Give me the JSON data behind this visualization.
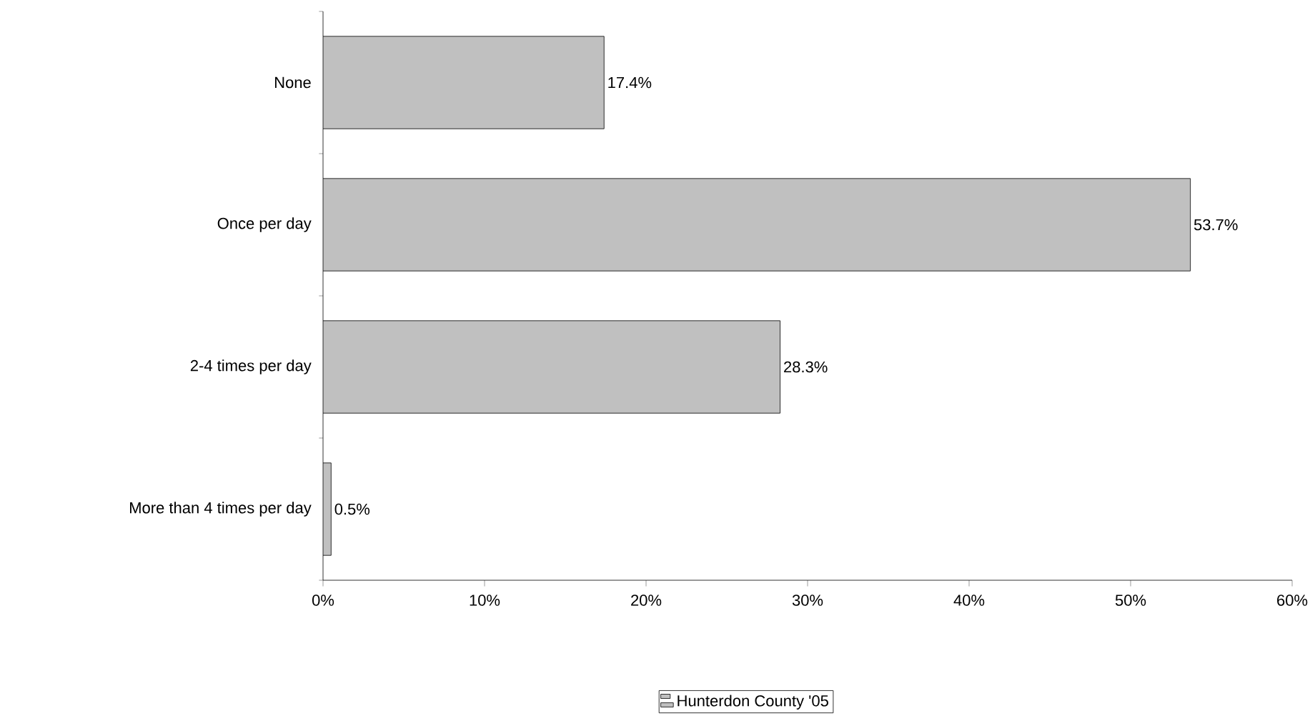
{
  "chart_data": {
    "type": "bar",
    "orientation": "horizontal",
    "categories": [
      "None",
      "Once per day",
      "2-4 times per day",
      "More than 4 times per day"
    ],
    "series": [
      {
        "name": "Hunterdon County '05",
        "color": "#c0c0c0",
        "values": [
          17.4,
          53.7,
          28.3,
          0.5
        ],
        "value_labels": [
          "17.4%",
          "53.7%",
          "28.3%",
          "0.5%"
        ]
      }
    ],
    "xlim": [
      0,
      60
    ],
    "xticks": [
      {
        "value": 0,
        "label": "0%"
      },
      {
        "value": 10,
        "label": "10%"
      },
      {
        "value": 20,
        "label": "20%"
      },
      {
        "value": 30,
        "label": "30%"
      },
      {
        "value": 40,
        "label": "40%"
      },
      {
        "value": 50,
        "label": "50%"
      },
      {
        "value": 60,
        "label": "60%"
      }
    ],
    "grid": false,
    "legend": "bottom"
  }
}
